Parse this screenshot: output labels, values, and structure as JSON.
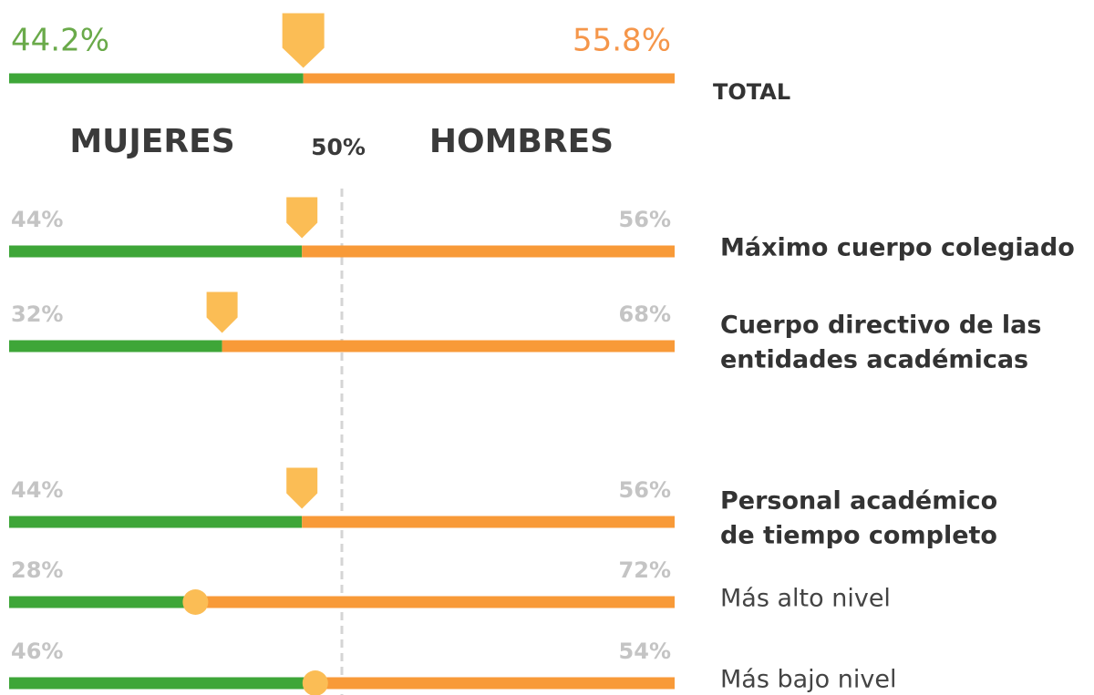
{
  "chart_data": {
    "type": "bar",
    "orientation": "horizontal",
    "stacked": true,
    "xlim": [
      0,
      100
    ],
    "reference": {
      "value": 50,
      "label": "50%"
    },
    "categories": [
      "TOTAL",
      "Máximo cuerpo colegiado",
      [
        "Cuerpo directivo de las",
        "entidades académicas"
      ],
      [
        "Personal académico",
        "de tiempo completo"
      ],
      "Más alto nivel",
      "Más bajo nivel"
    ],
    "marker_styles": [
      "pointer",
      "pointer",
      "pointer",
      "pointer",
      "dot",
      "dot"
    ],
    "marker_color": "#fbbd55",
    "series": [
      {
        "name": "MUJERES",
        "color": "#3ea638",
        "label_color": "#6aaa4a",
        "values": [
          44.2,
          44,
          32,
          44,
          28,
          46
        ],
        "value_labels": [
          "44.2%",
          "44%",
          "32%",
          "44%",
          "28%",
          "46%"
        ]
      },
      {
        "name": "HOMBRES",
        "color": "#f89a38",
        "label_color": "#f5964a",
        "values": [
          55.8,
          56,
          68,
          56,
          72,
          54
        ],
        "value_labels": [
          "55.8%",
          "56%",
          "68%",
          "56%",
          "72%",
          "54%"
        ]
      }
    ]
  }
}
